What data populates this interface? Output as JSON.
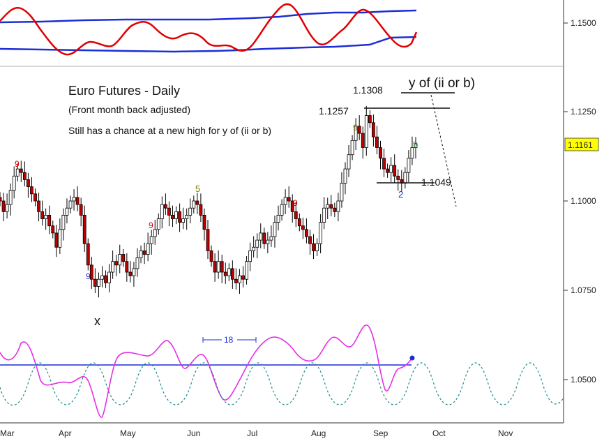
{
  "colors": {
    "bull_body": "#ffffff",
    "bear_body": "#c00000",
    "wick": "#000000",
    "band": "#1c2ed6",
    "oscillator": "#e00000",
    "cycle_magenta": "#e62ee6",
    "cycle_dashed": "#1a8a8a",
    "cycle_line": "#1c2ed6",
    "label_red": "#d40000",
    "label_blue": "#1c2ed6",
    "label_olive": "#7c7c00",
    "last_price_bg": "#ffff00"
  },
  "chart_data": {
    "type": "candlestick",
    "title": "Euro Futures - Daily",
    "subtitle": "(Front month back adjusted)",
    "annotation": "Still has a chance at a new high for y of (ii or b)",
    "price_axis_ticks": [
      "1.1500",
      "1.1250",
      "1.1000",
      "1.0750",
      "1.0500"
    ],
    "price_axis_values": [
      1.15,
      1.125,
      1.1,
      1.075,
      1.05
    ],
    "price_range": [
      1.04,
      1.157
    ],
    "x_axis_ticks": [
      "Mar",
      "Apr",
      "May",
      "Jun",
      "Jul",
      "Aug",
      "Sep",
      "Oct",
      "Nov"
    ],
    "last_price": "1.1161",
    "levels": [
      {
        "label": "1.1308",
        "value": 1.1308
      },
      {
        "label": "1.1257",
        "value": 1.1257
      },
      {
        "label": "1.1049",
        "value": 1.1049
      }
    ],
    "wave_labels": {
      "target": "y of (ii or b)",
      "low_x": "x",
      "sep_low": "2",
      "top_count": "5"
    },
    "count_labels": [
      "9",
      "9",
      "9",
      "9",
      "9",
      "9"
    ],
    "cycle_annotation": "18",
    "sessions_from_mar1": 172,
    "closes": [
      1.1,
      1.097,
      1.099,
      1.103,
      1.107,
      1.109,
      1.108,
      1.106,
      1.104,
      1.102,
      1.1,
      1.097,
      1.095,
      1.096,
      1.093,
      1.091,
      1.087,
      1.092,
      1.096,
      1.098,
      1.1,
      1.101,
      1.099,
      1.096,
      1.088,
      1.082,
      1.078,
      1.076,
      1.078,
      1.079,
      1.077,
      1.08,
      1.083,
      1.082,
      1.085,
      1.083,
      1.08,
      1.079,
      1.081,
      1.084,
      1.086,
      1.085,
      1.088,
      1.09,
      1.092,
      1.095,
      1.099,
      1.098,
      1.096,
      1.095,
      1.097,
      1.094,
      1.095,
      1.096,
      1.098,
      1.1,
      1.099,
      1.096,
      1.092,
      1.086,
      1.083,
      1.08,
      1.083,
      1.08,
      1.079,
      1.081,
      1.078,
      1.077,
      1.079,
      1.078,
      1.083,
      1.086,
      1.087,
      1.089,
      1.091,
      1.088,
      1.089,
      1.09,
      1.094,
      1.096,
      1.099,
      1.101,
      1.1,
      1.097,
      1.095,
      1.093,
      1.092,
      1.09,
      1.088,
      1.086,
      1.088,
      1.094,
      1.098,
      1.099,
      1.098,
      1.097,
      1.1,
      1.105,
      1.109,
      1.113,
      1.117,
      1.121,
      1.119,
      1.115,
      1.124,
      1.122,
      1.118,
      1.115,
      1.112,
      1.109,
      1.108,
      1.11,
      1.107,
      1.106,
      1.105,
      1.108,
      1.112,
      1.115,
      1.1161
    ]
  }
}
